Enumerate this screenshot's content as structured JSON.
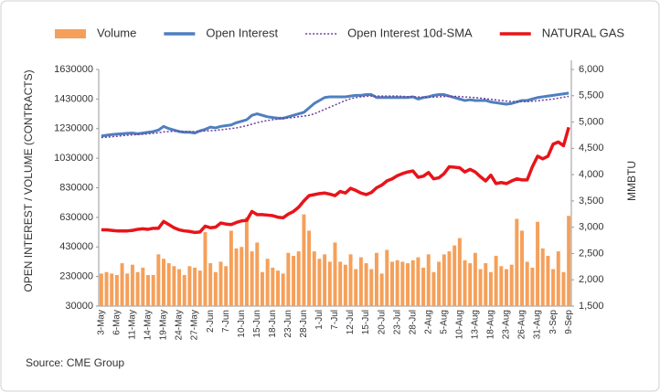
{
  "chart_data": {
    "type": "combo",
    "ylabel": "OPEN INTEREST / VOLUME (CONTRACTS)",
    "y2label": "MMBTU",
    "source": "Source: CME Group",
    "categories": [
      "3-May",
      null,
      null,
      "6-May",
      null,
      null,
      "11-May",
      null,
      null,
      "14-May",
      null,
      null,
      "19-May",
      null,
      null,
      "24-May",
      null,
      null,
      "27-May",
      null,
      null,
      "2-Jun",
      null,
      null,
      "7-Jun",
      null,
      null,
      "10-Jun",
      null,
      null,
      "15-Jun",
      null,
      null,
      "18-Jun",
      null,
      null,
      "23-Jun",
      null,
      null,
      "28-Jun",
      null,
      null,
      "1-Jul",
      null,
      null,
      "7-Jul",
      null,
      null,
      "12-Jul",
      null,
      null,
      "15-Jul",
      null,
      null,
      "20-Jul",
      null,
      null,
      "23-Jul",
      null,
      null,
      "28-Jul",
      null,
      null,
      "2-Aug",
      null,
      null,
      "5-Aug",
      null,
      null,
      "10-Aug",
      null,
      null,
      "13-Aug",
      null,
      null,
      "18-Aug",
      null,
      null,
      "23-Aug",
      null,
      null,
      "26-Aug",
      null,
      null,
      "31-Aug",
      null,
      null,
      "3-Sep",
      null,
      null,
      "9-Sep"
    ],
    "series": [
      {
        "name": "Volume",
        "kind": "bar",
        "color": "#f5a05a",
        "values": [
          250000,
          260000,
          250000,
          240000,
          320000,
          250000,
          310000,
          260000,
          290000,
          240000,
          240000,
          380000,
          350000,
          320000,
          300000,
          280000,
          240000,
          300000,
          290000,
          270000,
          530000,
          320000,
          260000,
          330000,
          300000,
          540000,
          420000,
          430000,
          630000,
          400000,
          460000,
          260000,
          350000,
          290000,
          270000,
          250000,
          390000,
          370000,
          400000,
          650000,
          540000,
          400000,
          350000,
          380000,
          330000,
          460000,
          330000,
          310000,
          380000,
          280000,
          360000,
          320000,
          280000,
          390000,
          250000,
          410000,
          330000,
          340000,
          330000,
          320000,
          340000,
          360000,
          290000,
          380000,
          260000,
          330000,
          380000,
          400000,
          440000,
          490000,
          340000,
          320000,
          390000,
          280000,
          320000,
          260000,
          370000,
          300000,
          280000,
          310000,
          620000,
          540000,
          330000,
          290000,
          600000,
          420000,
          370000,
          280000,
          400000,
          260000,
          640000
        ]
      },
      {
        "name": "Open Interest",
        "kind": "line",
        "color": "#4f7fbf",
        "values": [
          1180000,
          1185000,
          1190000,
          1193000,
          1195000,
          1198000,
          1200000,
          1195000,
          1200000,
          1205000,
          1210000,
          1220000,
          1245000,
          1230000,
          1220000,
          1210000,
          1205000,
          1205000,
          1200000,
          1215000,
          1225000,
          1240000,
          1235000,
          1245000,
          1250000,
          1255000,
          1270000,
          1280000,
          1290000,
          1320000,
          1330000,
          1320000,
          1310000,
          1305000,
          1300000,
          1300000,
          1310000,
          1320000,
          1330000,
          1340000,
          1370000,
          1400000,
          1420000,
          1440000,
          1445000,
          1445000,
          1445000,
          1445000,
          1450000,
          1455000,
          1455000,
          1460000,
          1460000,
          1440000,
          1440000,
          1440000,
          1440000,
          1440000,
          1440000,
          1440000,
          1445000,
          1430000,
          1440000,
          1445000,
          1455000,
          1460000,
          1460000,
          1450000,
          1440000,
          1430000,
          1420000,
          1425000,
          1420000,
          1420000,
          1420000,
          1410000,
          1405000,
          1400000,
          1395000,
          1400000,
          1410000,
          1420000,
          1420000,
          1430000,
          1440000,
          1445000,
          1450000,
          1455000,
          1460000,
          1465000,
          1470000
        ]
      },
      {
        "name": "Open Interest 10d-SMA",
        "kind": "line",
        "dash": "dotted",
        "color": "#6a3d9a",
        "values": [
          1170000,
          1172000,
          1175000,
          1178000,
          1182000,
          1185000,
          1188000,
          1190000,
          1192000,
          1195000,
          1198000,
          1202000,
          1208000,
          1210000,
          1212000,
          1212000,
          1211000,
          1210000,
          1210000,
          1212000,
          1214000,
          1216000,
          1218000,
          1222000,
          1226000,
          1230000,
          1235000,
          1242000,
          1250000,
          1260000,
          1270000,
          1278000,
          1285000,
          1290000,
          1295000,
          1300000,
          1302000,
          1305000,
          1310000,
          1315000,
          1320000,
          1330000,
          1345000,
          1360000,
          1375000,
          1390000,
          1405000,
          1420000,
          1432000,
          1440000,
          1445000,
          1448000,
          1450000,
          1450000,
          1450000,
          1450000,
          1450000,
          1450000,
          1448000,
          1446000,
          1445000,
          1444000,
          1443000,
          1442000,
          1443000,
          1445000,
          1447000,
          1448000,
          1448000,
          1447000,
          1444000,
          1442000,
          1440000,
          1436000,
          1432000,
          1428000,
          1424000,
          1420000,
          1416000,
          1413000,
          1412000,
          1412000,
          1413000,
          1415000,
          1418000,
          1422000,
          1426000,
          1430000,
          1436000,
          1442000,
          1448000
        ]
      },
      {
        "name": "NATURAL GAS",
        "kind": "line",
        "axis": "y2",
        "color": "#e8141a",
        "values": [
          2950,
          2950,
          2940,
          2930,
          2930,
          2930,
          2940,
          2960,
          2970,
          2960,
          2980,
          2980,
          3110,
          3050,
          2990,
          2950,
          2930,
          2920,
          2900,
          2910,
          3020,
          2990,
          3000,
          3080,
          3060,
          3050,
          3090,
          3120,
          3130,
          3300,
          3240,
          3240,
          3230,
          3220,
          3190,
          3180,
          3250,
          3300,
          3380,
          3500,
          3600,
          3620,
          3640,
          3650,
          3630,
          3600,
          3680,
          3650,
          3740,
          3700,
          3650,
          3620,
          3660,
          3750,
          3800,
          3880,
          3920,
          3980,
          4020,
          4050,
          4070,
          3950,
          3970,
          4040,
          3920,
          3940,
          4020,
          4150,
          4140,
          4130,
          4050,
          4100,
          4050,
          3960,
          3880,
          3990,
          3830,
          3850,
          3830,
          3880,
          3920,
          3900,
          3900,
          4150,
          4350,
          4300,
          4350,
          4580,
          4620,
          4550,
          4900
        ]
      }
    ],
    "ylim": [
      30000,
      1630000
    ],
    "yticks": [
      30000,
      230000,
      430000,
      630000,
      830000,
      1030000,
      1230000,
      1430000,
      1630000
    ],
    "y2lim": [
      1500,
      6000
    ],
    "y2ticks": [
      {
        "value": 1500,
        "label": "1,500"
      },
      {
        "value": 2000,
        "label": "2,000"
      },
      {
        "value": 2500,
        "label": "2,500"
      },
      {
        "value": 3000,
        "label": "3,000"
      },
      {
        "value": 3500,
        "label": "3,500"
      },
      {
        "value": 4000,
        "label": "4,000"
      },
      {
        "value": 4500,
        "label": "4,500"
      },
      {
        "value": 5000,
        "label": "5,000"
      },
      {
        "value": 5500,
        "label": "5,500"
      },
      {
        "value": 6000,
        "label": "6,000"
      }
    ],
    "legend": "top"
  }
}
